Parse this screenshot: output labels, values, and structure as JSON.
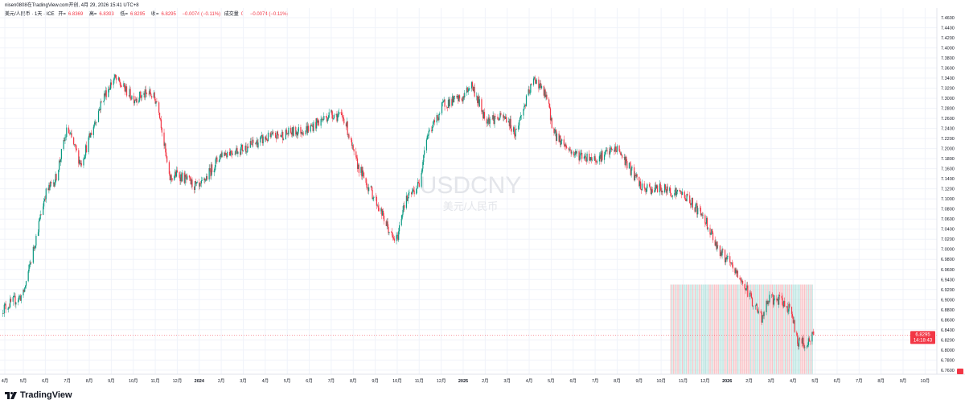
{
  "header": {
    "credit": "nisen0808在TradingView.com开创, 4月 29, 2026 15:41 UTC+8",
    "symbol": "美元/人民币 · 1天 · ICE",
    "open_label": "开=",
    "open": "6.8369",
    "high_label": "高=",
    "high": "6.8393",
    "low_label": "低=",
    "low": "6.8295",
    "close_label": "收=",
    "close": "6.8295",
    "change": "−0.0074 (−0.11%)",
    "volume_label": "成交量",
    "volume": "0",
    "volume_change": "−0.0074 (−0.11%)"
  },
  "watermark": {
    "ticker": "USDCNY",
    "name": "美元/人民币"
  },
  "price_tag": {
    "price": "6.8295",
    "countdown": "14:18:43"
  },
  "brand": "TradingView",
  "colors": {
    "up": "#089981",
    "down": "#f23645",
    "grid": "#f0f3fa",
    "tag": "#f23645"
  },
  "chart_data": {
    "type": "candlestick",
    "symbol": "USDCNY",
    "interval": "1D",
    "ylim": [
      6.76,
      7.46
    ],
    "y_ticks": [
      "7.4600",
      "7.4400",
      "7.4200",
      "7.4000",
      "7.3800",
      "7.3600",
      "7.3400",
      "7.3200",
      "7.3000",
      "7.2800",
      "7.2600",
      "7.2400",
      "7.2200",
      "7.2000",
      "7.1800",
      "7.1600",
      "7.1400",
      "7.1200",
      "7.1000",
      "7.0800",
      "7.0600",
      "7.0400",
      "7.0200",
      "7.0000",
      "6.9800",
      "6.9600",
      "6.9400",
      "6.9200",
      "6.9000",
      "6.8800",
      "6.8600",
      "6.8400",
      "6.8200",
      "6.8000",
      "6.7800",
      "6.7600"
    ],
    "x_ticks": [
      {
        "label": "4月",
        "date": "2023-04-01"
      },
      {
        "label": "5月",
        "date": "2023-05-01"
      },
      {
        "label": "6月",
        "date": "2023-06-01"
      },
      {
        "label": "7月",
        "date": "2023-07-01"
      },
      {
        "label": "8月",
        "date": "2023-08-01"
      },
      {
        "label": "9月",
        "date": "2023-09-01"
      },
      {
        "label": "10月",
        "date": "2023-10-01"
      },
      {
        "label": "11月",
        "date": "2023-11-01"
      },
      {
        "label": "12月",
        "date": "2023-12-01"
      },
      {
        "label": "2024",
        "date": "2024-01-01"
      },
      {
        "label": "2月",
        "date": "2024-02-01"
      },
      {
        "label": "3月",
        "date": "2024-03-01"
      },
      {
        "label": "4月",
        "date": "2024-04-01"
      },
      {
        "label": "5月",
        "date": "2024-05-01"
      },
      {
        "label": "6月",
        "date": "2024-06-01"
      },
      {
        "label": "7月",
        "date": "2024-07-01"
      },
      {
        "label": "8月",
        "date": "2024-08-01"
      },
      {
        "label": "9月",
        "date": "2024-09-01"
      },
      {
        "label": "10月",
        "date": "2024-10-01"
      },
      {
        "label": "11月",
        "date": "2024-11-01"
      },
      {
        "label": "12月",
        "date": "2024-12-01"
      },
      {
        "label": "2025",
        "date": "2025-01-01"
      },
      {
        "label": "2月",
        "date": "2025-02-01"
      },
      {
        "label": "3月",
        "date": "2025-03-01"
      },
      {
        "label": "4月",
        "date": "2025-04-01"
      },
      {
        "label": "5月",
        "date": "2025-05-01"
      },
      {
        "label": "6月",
        "date": "2025-06-01"
      },
      {
        "label": "7月",
        "date": "2025-07-01"
      },
      {
        "label": "8月",
        "date": "2025-08-01"
      },
      {
        "label": "9月",
        "date": "2025-09-01"
      },
      {
        "label": "10月",
        "date": "2025-10-01"
      },
      {
        "label": "11月",
        "date": "2025-11-01"
      },
      {
        "label": "12月",
        "date": "2025-12-01"
      },
      {
        "label": "2026",
        "date": "2026-01-01"
      },
      {
        "label": "2月",
        "date": "2026-02-01"
      },
      {
        "label": "3月",
        "date": "2026-03-01"
      },
      {
        "label": "4月",
        "date": "2026-04-01"
      },
      {
        "label": "5月",
        "date": "2026-05-01"
      },
      {
        "label": "6月",
        "date": "2026-06-01"
      },
      {
        "label": "7月",
        "date": "2026-07-01"
      },
      {
        "label": "8月",
        "date": "2026-08-01"
      },
      {
        "label": "9月",
        "date": "2026-09-01"
      },
      {
        "label": "10月",
        "date": "2026-10-01"
      }
    ],
    "close_path": [
      [
        "2023-04-01",
        6.88
      ],
      [
        "2023-05-01",
        6.91
      ],
      [
        "2023-05-20",
        7.03
      ],
      [
        "2023-06-01",
        7.11
      ],
      [
        "2023-06-15",
        7.14
      ],
      [
        "2023-07-01",
        7.24
      ],
      [
        "2023-07-20",
        7.17
      ],
      [
        "2023-08-01",
        7.22
      ],
      [
        "2023-08-20",
        7.3
      ],
      [
        "2023-09-05",
        7.34
      ],
      [
        "2023-10-01",
        7.3
      ],
      [
        "2023-10-25",
        7.31
      ],
      [
        "2023-11-05",
        7.29
      ],
      [
        "2023-11-15",
        7.19
      ],
      [
        "2023-11-20",
        7.14
      ],
      [
        "2023-12-01",
        7.15
      ],
      [
        "2024-01-01",
        7.12
      ],
      [
        "2024-02-01",
        7.19
      ],
      [
        "2024-03-01",
        7.2
      ],
      [
        "2024-04-01",
        7.22
      ],
      [
        "2024-05-01",
        7.23
      ],
      [
        "2024-06-01",
        7.24
      ],
      [
        "2024-07-01",
        7.27
      ],
      [
        "2024-07-20",
        7.26
      ],
      [
        "2024-08-03",
        7.18
      ],
      [
        "2024-08-20",
        7.13
      ],
      [
        "2024-09-01",
        7.1
      ],
      [
        "2024-09-25",
        7.02
      ],
      [
        "2024-10-01",
        7.02
      ],
      [
        "2024-10-10",
        7.09
      ],
      [
        "2024-11-01",
        7.13
      ],
      [
        "2024-11-10",
        7.22
      ],
      [
        "2024-11-25",
        7.26
      ],
      [
        "2024-12-05",
        7.29
      ],
      [
        "2025-01-01",
        7.3
      ],
      [
        "2025-01-12",
        7.33
      ],
      [
        "2025-02-01",
        7.26
      ],
      [
        "2025-03-01",
        7.26
      ],
      [
        "2025-03-12",
        7.23
      ],
      [
        "2025-04-03",
        7.32
      ],
      [
        "2025-04-09",
        7.34
      ],
      [
        "2025-04-25",
        7.3
      ],
      [
        "2025-05-05",
        7.23
      ],
      [
        "2025-06-01",
        7.19
      ],
      [
        "2025-07-01",
        7.18
      ],
      [
        "2025-08-01",
        7.2
      ],
      [
        "2025-08-15",
        7.17
      ],
      [
        "2025-09-05",
        7.12
      ],
      [
        "2025-10-01",
        7.12
      ],
      [
        "2025-11-01",
        7.11
      ],
      [
        "2025-11-20",
        7.08
      ],
      [
        "2025-12-01",
        7.06
      ],
      [
        "2025-12-20",
        7.0
      ],
      [
        "2026-01-05",
        6.97
      ],
      [
        "2026-01-25",
        6.93
      ],
      [
        "2026-02-18",
        6.86
      ],
      [
        "2026-02-25",
        6.9
      ],
      [
        "2026-03-10",
        6.9
      ],
      [
        "2026-03-30",
        6.88
      ],
      [
        "2026-04-05",
        6.82
      ],
      [
        "2026-04-18",
        6.81
      ],
      [
        "2026-04-29",
        6.8295
      ]
    ],
    "last": {
      "date": "2026-04-29",
      "open": 6.8369,
      "high": 6.8393,
      "low": 6.8295,
      "close": 6.8295
    }
  }
}
